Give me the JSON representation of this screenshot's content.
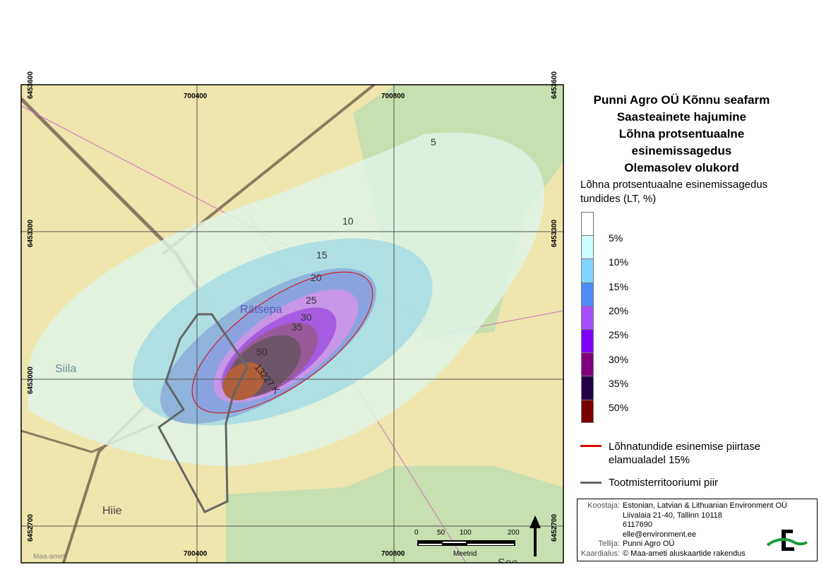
{
  "title": [
    "Punni Agro OÜ Kõnnu seafarm",
    "Saasteainete hajumine",
    "Lõhna protsentuaalne",
    "esinemissagedus",
    "Olemasolev olukord"
  ],
  "legend": {
    "heading": "Lõhna protsentuaalne esinemissagedus tundides (LT, %)",
    "classes": [
      {
        "label": "5%",
        "color": "#ffffff"
      },
      {
        "label": "10%",
        "color": "#ccffff"
      },
      {
        "label": "15%",
        "color": "#80d4ff"
      },
      {
        "label": "20%",
        "color": "#4d8cff"
      },
      {
        "label": "25%",
        "color": "#a64dff"
      },
      {
        "label": "30%",
        "color": "#8000ff"
      },
      {
        "label": "35%",
        "color": "#800080"
      },
      {
        "label": "50%",
        "color": "#260047"
      },
      {
        "label": "",
        "color": "#7a0000"
      }
    ],
    "lines": [
      {
        "label": "Lõhnatundide esinemise piirtase elamualadel 15%",
        "color": "#e00000"
      },
      {
        "label": "Tootmisterritooriumi piir",
        "color": "#666666"
      }
    ]
  },
  "credits": {
    "rows": [
      {
        "key": "Koostaja:",
        "value": "Estonian, Latvian & Lithuanian Environment OÜ"
      },
      {
        "key": "",
        "value": "Liivalaia 21-40, Tallinn 10118"
      },
      {
        "key": "",
        "value": "6117690"
      },
      {
        "key": "",
        "value": "elle@environment.ee"
      },
      {
        "key": "Tellija:",
        "value": "Punni Agro OÜ"
      },
      {
        "key": "Kaardialus:",
        "value": "© Maa-ameti aluskaartide rakendus"
      }
    ],
    "logo_text": "ELLE"
  },
  "map": {
    "grid_x": [
      "700400",
      "700800"
    ],
    "grid_y": [
      "6453600",
      "6453300",
      "6453000",
      "6452700"
    ],
    "contour_labels": [
      "5",
      "10",
      "15",
      "20",
      "25",
      "30",
      "35",
      "50"
    ],
    "places": [
      "Rätsepa",
      "Siila",
      "Hiie",
      "Soe"
    ],
    "road_label": "13227 K",
    "watermark": "Maa-amet",
    "scalebar": {
      "ticks": [
        "0",
        "50",
        "100",
        "200"
      ],
      "unit": "Meetrid"
    },
    "north_arrow": "north-arrow-icon"
  }
}
